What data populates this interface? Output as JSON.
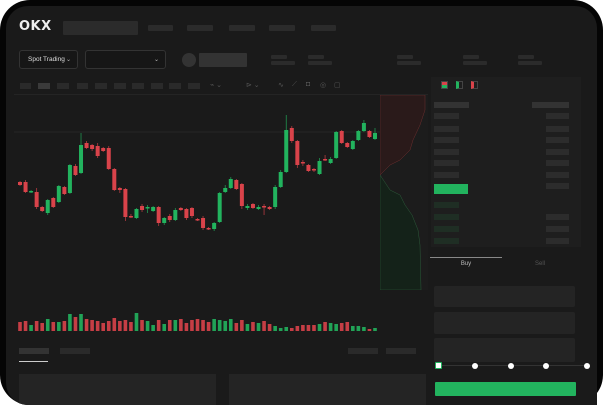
{
  "header": {
    "logo": "OKX"
  },
  "toolbar": {
    "market_selector": "Spot Trading",
    "pair_selector": ""
  },
  "trade": {
    "tabs": [
      "Buy",
      "Sell"
    ],
    "active_tab": "Buy",
    "slider_percent": 0
  },
  "colors": {
    "up": "#22b35e",
    "down": "#d9434a",
    "background": "#1a1a1a",
    "button": "#22b35e"
  },
  "icons": [
    "chevron-down-icon",
    "line-chart-icon",
    "ruler-icon",
    "camera-icon",
    "settings-icon",
    "fullscreen-icon",
    "orderbook-both-icon",
    "orderbook-bids-icon",
    "orderbook-asks-icon"
  ],
  "chart_data": {
    "type": "candlestick",
    "candles_ohlc": [
      [
        68,
        69,
        64,
        65
      ],
      [
        68,
        70,
        57,
        58
      ],
      [
        58,
        60,
        57,
        59
      ],
      [
        58,
        62,
        41,
        43
      ],
      [
        43,
        44,
        38,
        39
      ],
      [
        37,
        51,
        35,
        50
      ],
      [
        52,
        53,
        42,
        43
      ],
      [
        48,
        65,
        47,
        64
      ],
      [
        63,
        64,
        55,
        56
      ],
      [
        57,
        86,
        56,
        85
      ],
      [
        84,
        86,
        74,
        75
      ],
      [
        77,
        117,
        76,
        105
      ],
      [
        107,
        109,
        101,
        102
      ],
      [
        105,
        106,
        99,
        101
      ],
      [
        104,
        107,
        92,
        94
      ],
      [
        102,
        103,
        98,
        99
      ],
      [
        102,
        104,
        80,
        81
      ],
      [
        81,
        82,
        59,
        60
      ],
      [
        62,
        63,
        57,
        60
      ],
      [
        61,
        62,
        29,
        33
      ],
      [
        34,
        36,
        32,
        33
      ],
      [
        32,
        42,
        31,
        41
      ],
      [
        44,
        46,
        38,
        40
      ],
      [
        42,
        45,
        37,
        43
      ],
      [
        39,
        44,
        38,
        43
      ],
      [
        43,
        44,
        24,
        27
      ],
      [
        27,
        33,
        25,
        32
      ],
      [
        34,
        36,
        28,
        30
      ],
      [
        30,
        42,
        29,
        40
      ],
      [
        42,
        43,
        39,
        40
      ],
      [
        41,
        42,
        30,
        32
      ],
      [
        42,
        43,
        32,
        34
      ],
      [
        31,
        32,
        29,
        30
      ],
      [
        32,
        34,
        20,
        22
      ],
      [
        22,
        23,
        20,
        21
      ],
      [
        21,
        28,
        19,
        27
      ],
      [
        28,
        58,
        27,
        57
      ],
      [
        58,
        65,
        57,
        62
      ],
      [
        62,
        73,
        61,
        71
      ],
      [
        70,
        71,
        60,
        61
      ],
      [
        66,
        67,
        41,
        44
      ],
      [
        42,
        46,
        40,
        44
      ],
      [
        46,
        47,
        41,
        42
      ],
      [
        41,
        45,
        40,
        43
      ],
      [
        44,
        46,
        35,
        43
      ],
      [
        43,
        44,
        40,
        41
      ],
      [
        43,
        65,
        41,
        63
      ],
      [
        63,
        80,
        62,
        78
      ],
      [
        78,
        135,
        77,
        120
      ],
      [
        122,
        124,
        107,
        109
      ],
      [
        109,
        110,
        82,
        85
      ],
      [
        88,
        90,
        84,
        87
      ],
      [
        85,
        86,
        78,
        79
      ],
      [
        81,
        82,
        78,
        80
      ],
      [
        76,
        92,
        75,
        89
      ],
      [
        91,
        95,
        89,
        90
      ],
      [
        87,
        93,
        86,
        91
      ],
      [
        92,
        119,
        91,
        118
      ],
      [
        119,
        120,
        106,
        107
      ],
      [
        107,
        108,
        102,
        103
      ],
      [
        101,
        110,
        100,
        109
      ],
      [
        110,
        120,
        109,
        119
      ],
      [
        119,
        130,
        118,
        127
      ],
      [
        119,
        120,
        112,
        113
      ],
      [
        111,
        122,
        110,
        117
      ]
    ],
    "volume": [
      9,
      10,
      6,
      10,
      8,
      12,
      9,
      9,
      10,
      17,
      14,
      17,
      12,
      11,
      10,
      8,
      10,
      13,
      10,
      11,
      9,
      18,
      11,
      10,
      6,
      11,
      7,
      11,
      11,
      12,
      8,
      11,
      12,
      11,
      9,
      12,
      11,
      10,
      12,
      8,
      11,
      7,
      9,
      8,
      10,
      7,
      5,
      3,
      4,
      3,
      5,
      6,
      6,
      6,
      7,
      9,
      8,
      7,
      8,
      9,
      5,
      5,
      4,
      2,
      3
    ]
  }
}
